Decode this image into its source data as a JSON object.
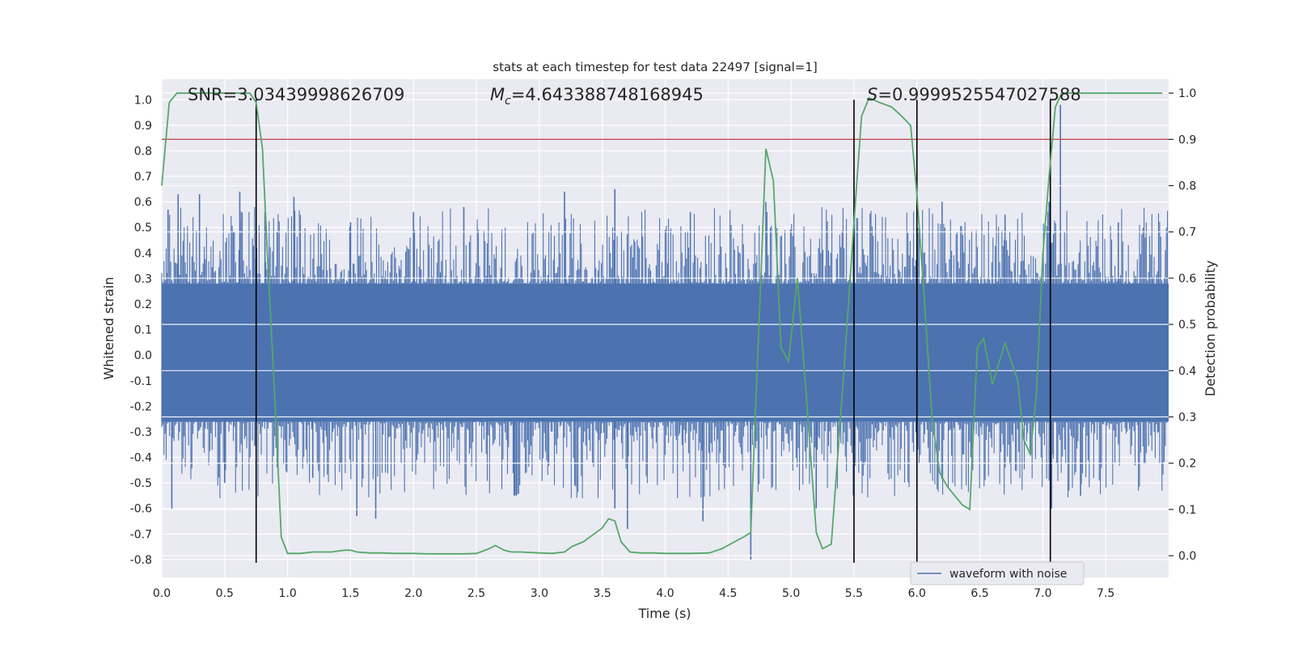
{
  "chart_data": {
    "type": "line",
    "title": "stats at each timestep for test data 22497 [signal=1]",
    "xlabel": "Time (s)",
    "ylabel": "Whitened strain",
    "ylabel_right": "Detection probability",
    "xlim": [
      0.0,
      8.0
    ],
    "ylim": [
      -0.87,
      1.08
    ],
    "ylim_right": [
      -0.047,
      1.03
    ],
    "x_ticks": [
      "0.0",
      "0.5",
      "1.0",
      "1.5",
      "2.0",
      "2.5",
      "3.0",
      "3.5",
      "4.0",
      "4.5",
      "5.0",
      "5.5",
      "6.0",
      "6.5",
      "7.0",
      "7.5"
    ],
    "y_ticks": [
      "1.0",
      "0.9",
      "0.8",
      "0.7",
      "0.6",
      "0.5",
      "0.4",
      "0.3",
      "0.2",
      "0.1",
      "0.0",
      "-0.1",
      "-0.2",
      "-0.3",
      "-0.4",
      "-0.5",
      "-0.6",
      "-0.7",
      "-0.8"
    ],
    "y_ticks_right": [
      "1.0",
      "0.9",
      "0.8",
      "0.7",
      "0.6",
      "0.5",
      "0.4",
      "0.3",
      "0.2",
      "0.1",
      "0.0"
    ],
    "annotations": {
      "snr": "SNR=3.03439998626709",
      "mc_symbol": "M",
      "mc_sub": "c",
      "mc_value": "=4.643388748168945",
      "s_symbol": "S",
      "s_value": "=0.9999525547027588"
    },
    "threshold": {
      "value": 0.9,
      "color": "#c44e52"
    },
    "vlines": [
      0.75,
      5.5,
      6.0,
      7.06
    ],
    "legend": [
      "waveform with noise"
    ],
    "series": [
      {
        "name": "waveform with noise",
        "color": "#4c72b0",
        "noise_band": [
          -0.26,
          0.28
        ],
        "peaks_hi": [
          [
            0.05,
            0.57
          ],
          [
            0.13,
            0.63
          ],
          [
            0.3,
            0.63
          ],
          [
            0.62,
            0.64
          ],
          [
            0.82,
            0.56
          ],
          [
            1.05,
            0.62
          ],
          [
            1.5,
            0.52
          ],
          [
            2.0,
            0.56
          ],
          [
            2.4,
            0.58
          ],
          [
            3.2,
            0.64
          ],
          [
            3.6,
            0.65
          ],
          [
            4.2,
            0.56
          ],
          [
            4.8,
            0.6
          ],
          [
            5.5,
            0.58
          ],
          [
            6.2,
            0.6
          ],
          [
            6.7,
            0.55
          ],
          [
            7.05,
            0.6
          ],
          [
            7.14,
            0.98
          ],
          [
            7.6,
            0.52
          ]
        ],
        "peaks_lo": [
          [
            0.08,
            -0.6
          ],
          [
            0.5,
            -0.5
          ],
          [
            1.2,
            -0.48
          ],
          [
            1.55,
            -0.63
          ],
          [
            1.7,
            -0.64
          ],
          [
            2.8,
            -0.55
          ],
          [
            3.6,
            -0.6
          ],
          [
            3.7,
            -0.68
          ],
          [
            4.3,
            -0.65
          ],
          [
            4.68,
            -0.8
          ],
          [
            5.2,
            -0.6
          ],
          [
            6.0,
            -0.65
          ],
          [
            7.07,
            -0.6
          ],
          [
            7.3,
            -0.55
          ]
        ]
      },
      {
        "name": "detection probability",
        "color": "#55a868",
        "axis": "right",
        "x": [
          0.0,
          0.06,
          0.12,
          0.2,
          0.3,
          0.45,
          0.6,
          0.7,
          0.75,
          0.8,
          0.84,
          0.9,
          0.95,
          1.0,
          1.1,
          1.2,
          1.25,
          1.35,
          1.45,
          1.5,
          1.55,
          1.65,
          1.75,
          1.85,
          2.0,
          2.1,
          2.2,
          2.3,
          2.4,
          2.5,
          2.6,
          2.65,
          2.72,
          2.78,
          2.85,
          3.0,
          3.1,
          3.2,
          3.26,
          3.35,
          3.4,
          3.5,
          3.55,
          3.6,
          3.65,
          3.72,
          3.8,
          3.9,
          4.0,
          4.1,
          4.2,
          4.35,
          4.45,
          4.55,
          4.62,
          4.68,
          4.72,
          4.76,
          4.8,
          4.86,
          4.92,
          4.98,
          5.05,
          5.12,
          5.2,
          5.25,
          5.32,
          5.42,
          5.5,
          5.56,
          5.62,
          5.7,
          5.8,
          5.88,
          5.95,
          6.0,
          6.06,
          6.12,
          6.18,
          6.24,
          6.3,
          6.36,
          6.42,
          6.48,
          6.53,
          6.6,
          6.7,
          6.75,
          6.8,
          6.85,
          6.9,
          6.95,
          7.0,
          7.05,
          7.1,
          7.15,
          7.2,
          7.3,
          7.5,
          7.8,
          7.95
        ],
        "y": [
          0.8,
          0.98,
          1.0,
          1.0,
          1.0,
          1.0,
          1.0,
          1.0,
          0.98,
          0.88,
          0.65,
          0.33,
          0.04,
          0.005,
          0.005,
          0.008,
          0.008,
          0.008,
          0.012,
          0.012,
          0.008,
          0.006,
          0.006,
          0.005,
          0.005,
          0.004,
          0.004,
          0.004,
          0.004,
          0.005,
          0.015,
          0.022,
          0.012,
          0.008,
          0.008,
          0.006,
          0.005,
          0.008,
          0.02,
          0.03,
          0.04,
          0.06,
          0.08,
          0.075,
          0.03,
          0.008,
          0.006,
          0.006,
          0.005,
          0.005,
          0.005,
          0.006,
          0.015,
          0.03,
          0.04,
          0.05,
          0.33,
          0.6,
          0.88,
          0.81,
          0.45,
          0.42,
          0.6,
          0.35,
          0.05,
          0.015,
          0.025,
          0.4,
          0.72,
          0.95,
          0.99,
          0.98,
          0.97,
          0.95,
          0.93,
          0.78,
          0.55,
          0.3,
          0.18,
          0.15,
          0.13,
          0.11,
          0.1,
          0.45,
          0.47,
          0.37,
          0.46,
          0.42,
          0.38,
          0.25,
          0.22,
          0.35,
          0.65,
          0.82,
          0.97,
          1.0,
          1.0,
          1.0,
          1.0,
          1.0,
          1.0
        ]
      }
    ]
  }
}
